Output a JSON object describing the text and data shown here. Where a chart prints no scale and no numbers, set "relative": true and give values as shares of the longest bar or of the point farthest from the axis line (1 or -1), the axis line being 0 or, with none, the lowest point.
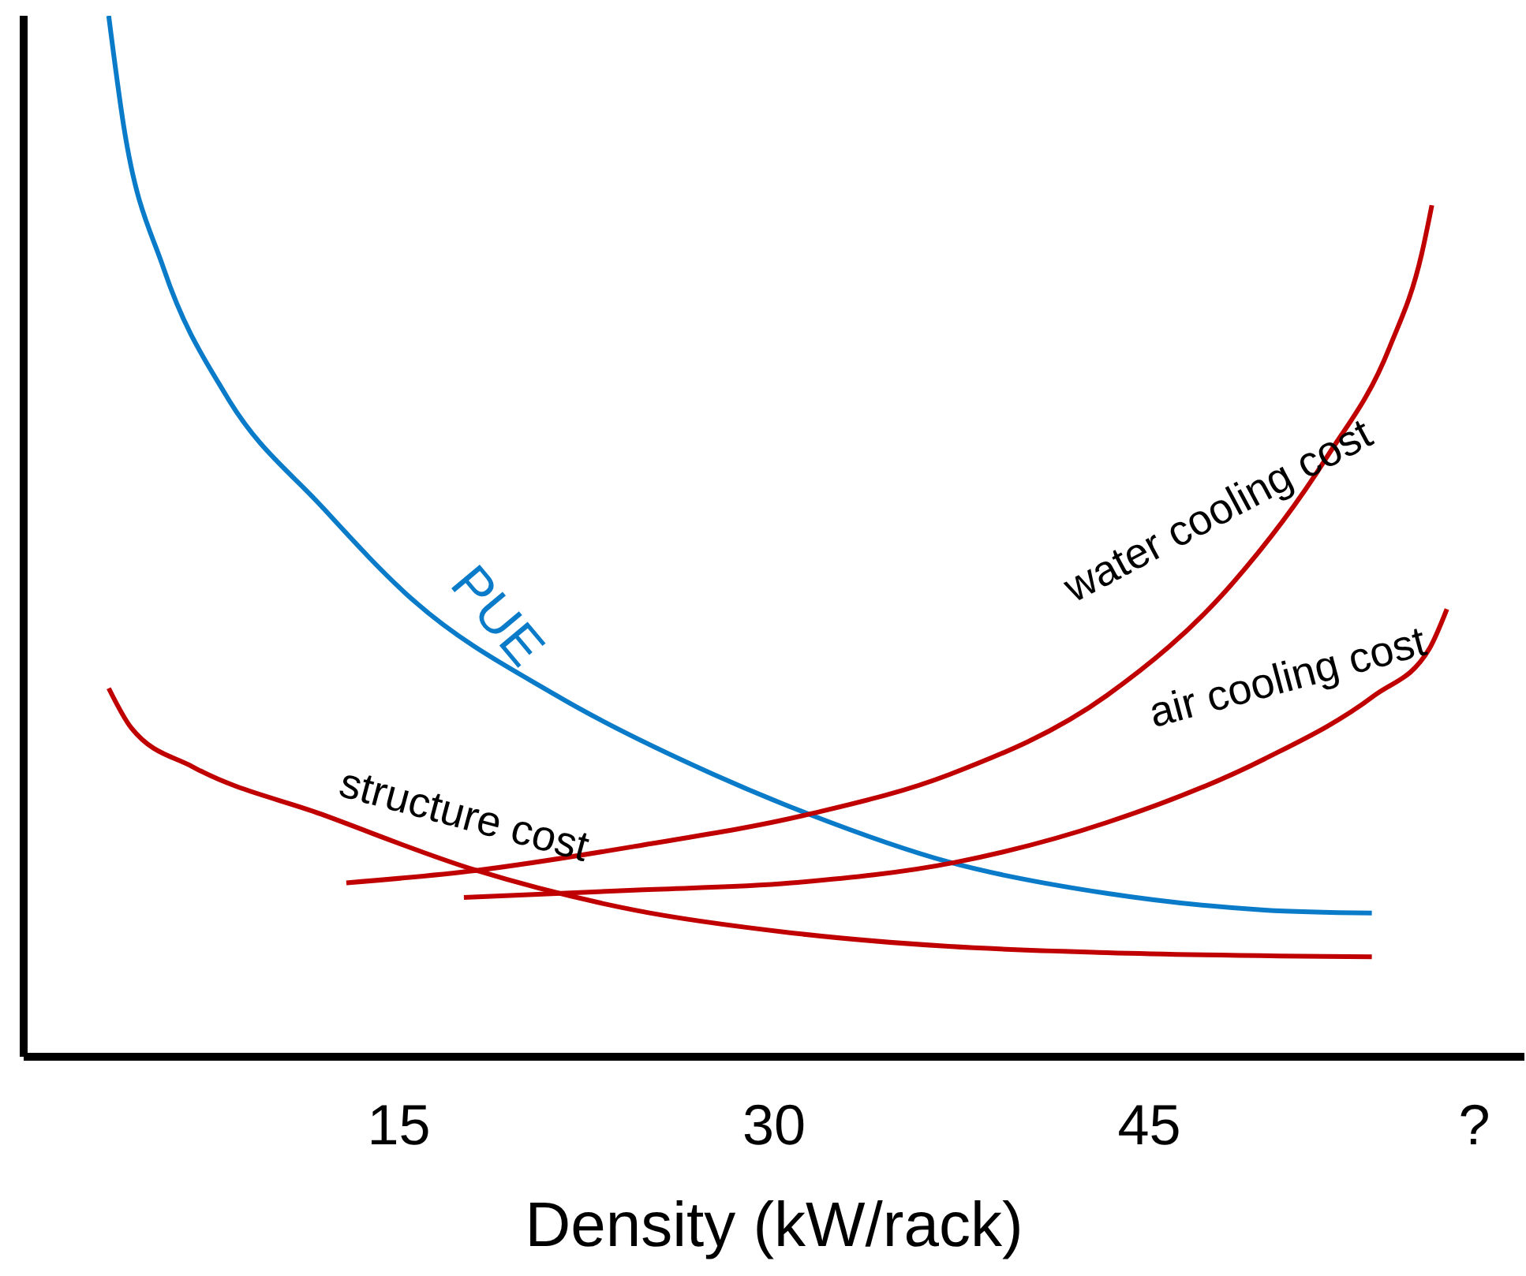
{
  "chart_data": {
    "type": "line",
    "relative": true,
    "xlabel": "Density (kW/rack)",
    "xlim": [
      0,
      60
    ],
    "xticks": [
      15,
      30,
      45,
      {
        "value": 58,
        "label": "?"
      }
    ],
    "grid": false,
    "legend": false,
    "marker": "none",
    "line_style": "solid",
    "series": [
      {
        "name": "PUE",
        "color": "#0a7bc9",
        "x": [
          3.4,
          4.0,
          5.6,
          8.1,
          11.9,
          15.6,
          21.3,
          27.6,
          31.4,
          37.0,
          43.3,
          49.6,
          53.9
        ],
        "values": [
          1.0,
          0.894,
          0.757,
          0.635,
          0.529,
          0.438,
          0.347,
          0.271,
          0.233,
          0.187,
          0.157,
          0.141,
          0.138
        ]
      },
      {
        "name": "structure cost",
        "color": "#c00000",
        "x": [
          3.4,
          4.3,
          6.8,
          11.9,
          18.1,
          24.4,
          30.7,
          37.0,
          43.3,
          53.9
        ],
        "values": [
          0.354,
          0.316,
          0.278,
          0.233,
          0.179,
          0.141,
          0.119,
          0.106,
          0.1,
          0.096
        ]
      },
      {
        "name": "water cooling cost",
        "color": "#c00000",
        "x": [
          12.9,
          18.1,
          24.4,
          31.4,
          37.0,
          43.3,
          48.3,
          52.1,
          54.6,
          55.9,
          56.3
        ],
        "values": [
          0.167,
          0.179,
          0.202,
          0.233,
          0.271,
          0.347,
          0.454,
          0.576,
          0.681,
          0.772,
          0.818
        ]
      },
      {
        "name": "air cooling cost",
        "color": "#c00000",
        "x": [
          17.6,
          24.4,
          30.7,
          37.3,
          43.3,
          49.6,
          54.0,
          56.2,
          56.9
        ],
        "values": [
          0.153,
          0.16,
          0.167,
          0.187,
          0.225,
          0.286,
          0.347,
          0.392,
          0.43
        ]
      }
    ]
  }
}
